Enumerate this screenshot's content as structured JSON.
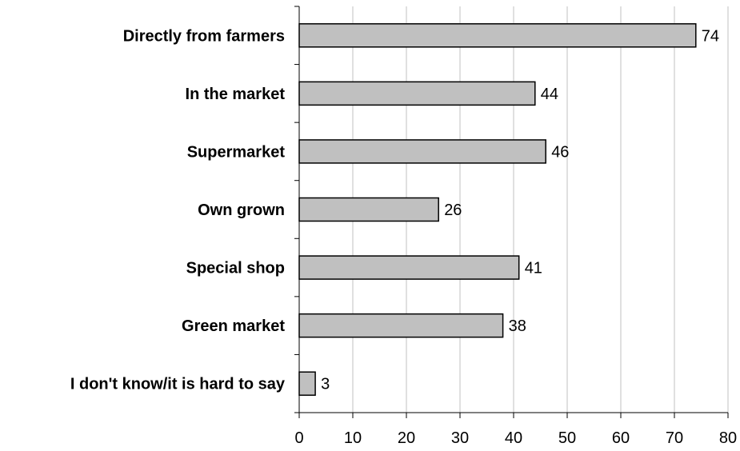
{
  "chart_data": {
    "type": "bar",
    "orientation": "horizontal",
    "categories": [
      "Directly from farmers",
      "In the market",
      "Supermarket",
      "Own grown",
      "Special shop",
      "Green market",
      "I don't know/it is hard to say"
    ],
    "values": [
      74,
      44,
      46,
      26,
      41,
      38,
      3
    ],
    "title": "",
    "xlabel": "",
    "ylabel": "",
    "xlim": [
      0,
      80
    ],
    "x_ticks": [
      0,
      10,
      20,
      30,
      40,
      50,
      60,
      70,
      80
    ],
    "grid": "vertical",
    "legend": "none",
    "colors": {
      "bar_fill": "#c0c0c0",
      "bar_stroke": "#000000",
      "grid": "#c0c0c0",
      "axis": "#000000"
    }
  }
}
